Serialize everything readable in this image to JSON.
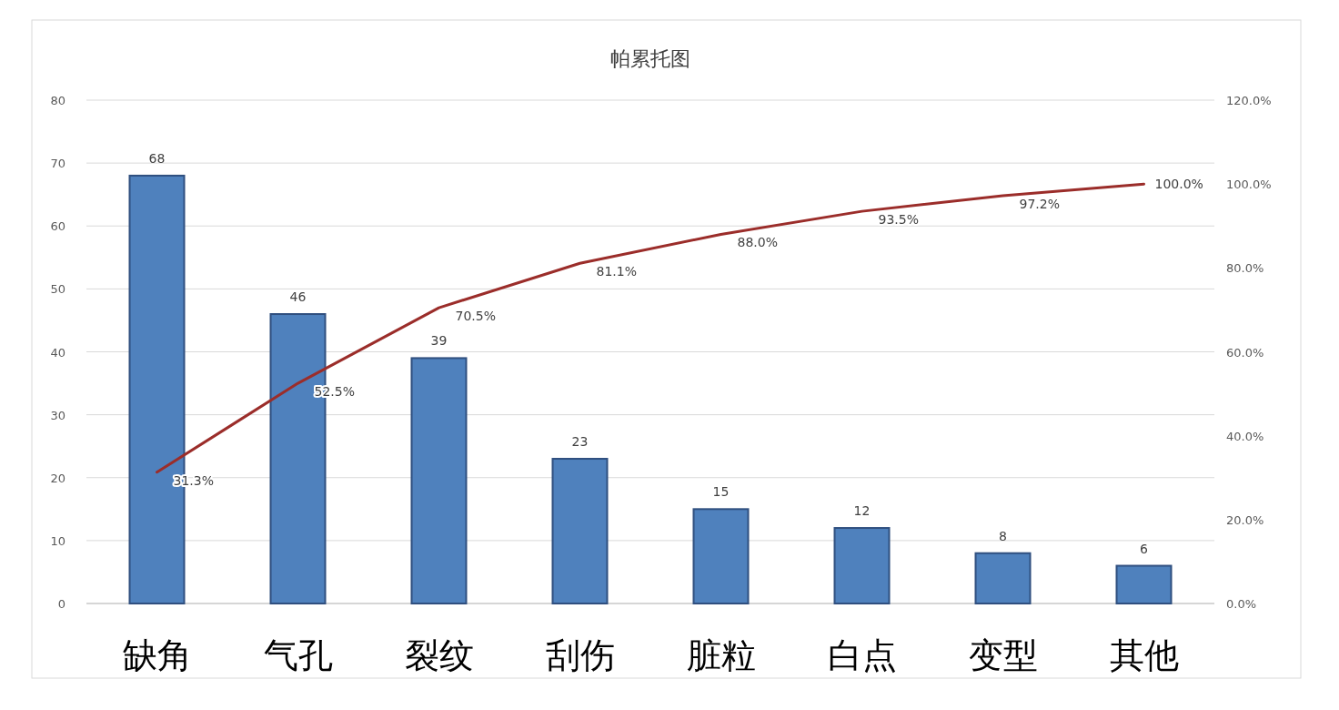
{
  "chart_data": {
    "type": "bar",
    "title": "帕累托图",
    "categories": [
      "缺角",
      "气孔",
      "裂纹",
      "刮伤",
      "脏粒",
      "白点",
      "变型",
      "其他"
    ],
    "series": [
      {
        "type": "bar",
        "color": "#4f81bd",
        "values": [
          68,
          46,
          39,
          23,
          15,
          12,
          8,
          6
        ],
        "value_labels": [
          "68",
          "46",
          "39",
          "23",
          "15",
          "12",
          "8",
          "6"
        ]
      },
      {
        "type": "line",
        "axis": "y2",
        "color": "#9b2d2a",
        "values": [
          31.3,
          52.5,
          70.5,
          81.1,
          88.0,
          93.5,
          97.2,
          100.0
        ],
        "value_labels": [
          "31.3%",
          "52.5%",
          "70.5%",
          "81.1%",
          "88.0%",
          "93.5%",
          "97.2%",
          "100.0%"
        ]
      }
    ],
    "ylim": [
      0,
      80
    ],
    "yticks": [
      0,
      10,
      20,
      30,
      40,
      50,
      60,
      70,
      80
    ],
    "y2lim": [
      0,
      120
    ],
    "y2ticks": [
      {
        "value": 0,
        "label": "0.0%"
      },
      {
        "value": 20,
        "label": "20.0%"
      },
      {
        "value": 40,
        "label": "40.0%"
      },
      {
        "value": 60,
        "label": "60.0%"
      },
      {
        "value": 80,
        "label": "80.0%"
      },
      {
        "value": 100,
        "label": "100.0%"
      },
      {
        "value": 120,
        "label": "120.0%"
      }
    ],
    "grid": "y"
  }
}
